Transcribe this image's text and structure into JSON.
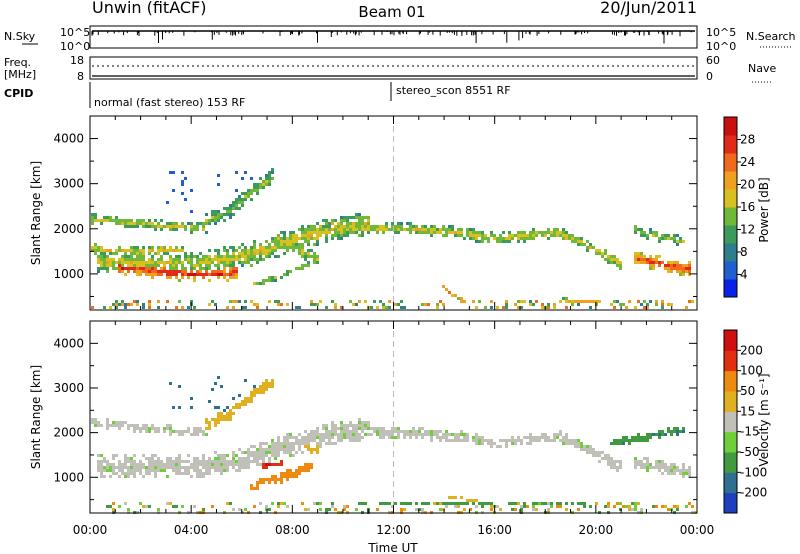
{
  "header": {
    "station": "Unwin (fitACF)",
    "beam": "Beam 01",
    "date": "20/Jun/2011"
  },
  "noise_panel": {
    "left_label": "N.Sky",
    "right_label": "N.Search",
    "y_ticks": [
      "10^5",
      "10^0"
    ]
  },
  "freq_panel": {
    "left_label_1": "Freq.",
    "left_label_2": "[MHz]",
    "left_ticks": [
      "18",
      "8"
    ],
    "right_label": "Nave",
    "right_ticks": [
      "60",
      "0"
    ]
  },
  "cpid_panel": {
    "label": "CPID",
    "segments": [
      {
        "text": "normal (fast stereo) 153 RF",
        "start_hour": 0
      },
      {
        "text": "stereo_scon 8551 RF",
        "start_hour": 12
      }
    ]
  },
  "chart_data": [
    {
      "type": "heatmap",
      "name": "power",
      "ylabel": "Slant Range [km]",
      "xlabel": "Time UT",
      "x_ticks": [
        "00:00",
        "04:00",
        "08:00",
        "12:00",
        "16:00",
        "20:00",
        "00:00"
      ],
      "xlim_hours": [
        0,
        24
      ],
      "ylim_km": [
        200,
        4500
      ],
      "y_ticks": [
        1000,
        2000,
        3000,
        4000
      ],
      "marker_line_hour": 12,
      "colorbar": {
        "label": "Power [dB]",
        "ticks": [
          "4",
          "8",
          "12",
          "16",
          "20",
          "24",
          "28"
        ],
        "colors": [
          "#0a22e6",
          "#1f5fd0",
          "#2f7e8c",
          "#3c9a5a",
          "#6fb83a",
          "#d8c020",
          "#f0a020",
          "#f06a1c",
          "#e02a1a",
          "#c81010"
        ]
      },
      "bands": [
        {
          "h": [
            1.0,
            2.0,
            3.0,
            4.0,
            5.0,
            5.8
          ],
          "km": [
            1180,
            1130,
            1080,
            1020,
            1020,
            1100
          ],
          "width_km": 350,
          "level": 0.9
        },
        {
          "h": [
            0.2,
            2.0,
            4.0,
            5.5,
            6.5,
            7.5,
            9.0,
            10.0,
            11.0
          ],
          "km": [
            1300,
            1280,
            1260,
            1380,
            1500,
            1700,
            1950,
            2050,
            2150
          ],
          "width_km": 520,
          "level": 0.55
        },
        {
          "h": [
            0.0,
            1.0,
            2.0,
            3.0,
            3.7
          ],
          "km": [
            1600,
            1550,
            1520,
            1560,
            1550
          ],
          "width_km": 220,
          "level": 0.6
        },
        {
          "h": [
            0.0,
            1.0,
            2.0,
            3.0,
            3.8,
            4.6
          ],
          "km": [
            2250,
            2200,
            2150,
            2100,
            2050,
            2050
          ],
          "width_km": 220,
          "level": 0.55
        },
        {
          "h": [
            4.5,
            5.5,
            6.2,
            7.2
          ],
          "km": [
            2200,
            2450,
            2800,
            3200
          ],
          "width_km": 350,
          "level": 0.45
        },
        {
          "h": [
            6.4,
            7.2,
            7.9,
            8.6
          ],
          "km": [
            800,
            930,
            1080,
            1250
          ],
          "width_km": 120,
          "level": 0.5
        },
        {
          "h": [
            7.5,
            8.2,
            9.0
          ],
          "km": [
            1750,
            1550,
            1350
          ],
          "width_km": 280,
          "level": 0.55
        },
        {
          "h": [
            9.5,
            10.5,
            11.5,
            12.5,
            13.5,
            14.5,
            15.5,
            16.5,
            17.5,
            18.5,
            19.5,
            20.3,
            21.0
          ],
          "km": [
            2150,
            2050,
            2030,
            2030,
            1980,
            1950,
            1850,
            1830,
            1900,
            1950,
            1700,
            1450,
            1250
          ],
          "width_km": 260,
          "level": 0.55
        },
        {
          "h": [
            21.4,
            22.2,
            23.0,
            23.7
          ],
          "km": [
            1400,
            1300,
            1200,
            1150
          ],
          "width_km": 320,
          "level": 0.85
        },
        {
          "h": [
            21.5,
            22.5,
            23.5
          ],
          "km": [
            2000,
            1850,
            1750
          ],
          "width_km": 220,
          "level": 0.5
        },
        {
          "h": [
            13.8,
            14.2,
            14.8
          ],
          "km": [
            800,
            600,
            450
          ],
          "width_km": 80,
          "level": 0.75
        },
        {
          "h": [
            18.5,
            19.4,
            20.1
          ],
          "km": [
            450,
            420,
            400
          ],
          "width_km": 100,
          "level": 0.7
        }
      ]
    },
    {
      "type": "heatmap",
      "name": "velocity",
      "ylabel": "Slant Range [km]",
      "xlabel": "Time UT",
      "x_ticks": [
        "00:00",
        "04:00",
        "08:00",
        "12:00",
        "16:00",
        "20:00",
        "00:00"
      ],
      "xlim_hours": [
        0,
        24
      ],
      "ylim_km": [
        200,
        4500
      ],
      "y_ticks": [
        1000,
        2000,
        3000,
        4000
      ],
      "marker_line_hour": 12,
      "colorbar": {
        "label": "Velocity [m s⁻¹]",
        "ticks": [
          "200",
          "100",
          "50",
          "15",
          "-15",
          "-50",
          "-100",
          "-200"
        ],
        "colors": [
          "#1f3fbf",
          "#2f7090",
          "#3f9a40",
          "#6fcf3a",
          "#c0c0b8",
          "#e0b020",
          "#ef8a10",
          "#e03010",
          "#d01010"
        ]
      },
      "bands": [
        {
          "h": [
            0.2,
            2.0,
            4.0,
            5.5,
            6.5,
            7.5,
            9.0,
            10.0,
            11.0
          ],
          "km": [
            1300,
            1280,
            1260,
            1380,
            1500,
            1700,
            1950,
            2050,
            2150
          ],
          "width_km": 520,
          "level": 0.47
        },
        {
          "h": [
            0.0,
            1.0,
            2.0,
            3.0,
            3.8,
            4.6
          ],
          "km": [
            2250,
            2200,
            2150,
            2100,
            2050,
            2050
          ],
          "width_km": 220,
          "level": 0.47
        },
        {
          "h": [
            9.5,
            10.5,
            11.5,
            12.5,
            13.5,
            14.5,
            15.5,
            16.5,
            17.5,
            18.5,
            19.5,
            20.3,
            21.0
          ],
          "km": [
            2150,
            2050,
            2030,
            2030,
            1980,
            1950,
            1850,
            1830,
            1900,
            1950,
            1700,
            1450,
            1250
          ],
          "width_km": 260,
          "level": 0.47
        },
        {
          "h": [
            21.4,
            22.2,
            23.0,
            23.7
          ],
          "km": [
            1400,
            1300,
            1200,
            1150
          ],
          "width_km": 320,
          "level": 0.47
        },
        {
          "h": [
            4.5,
            5.5,
            6.2,
            7.2
          ],
          "km": [
            2200,
            2450,
            2800,
            3200
          ],
          "width_km": 300,
          "level": 0.64
        },
        {
          "h": [
            6.3,
            7.2,
            8.0,
            8.7
          ],
          "km": [
            850,
            980,
            1120,
            1280
          ],
          "width_km": 260,
          "level": 0.75
        },
        {
          "h": [
            6.7,
            7.1,
            7.6
          ],
          "km": [
            1250,
            1320,
            1380
          ],
          "width_km": 130,
          "level": 0.92
        },
        {
          "h": [
            8.0,
            9.0
          ],
          "km": [
            1800,
            1650
          ],
          "width_km": 220,
          "level": 0.62
        },
        {
          "h": [
            10.5,
            12.0,
            14.0,
            16.0,
            18.0,
            20.0
          ],
          "km": [
            420,
            420,
            450,
            420,
            420,
            420
          ],
          "width_km": 70,
          "level": 0.25
        },
        {
          "h": [
            14.0,
            15.0,
            15.5
          ],
          "km": [
            600,
            520,
            460
          ],
          "width_km": 70,
          "level": 0.65
        },
        {
          "h": [
            20.5,
            21.5,
            22.5,
            23.5
          ],
          "km": [
            1800,
            1900,
            2000,
            2100
          ],
          "width_km": 200,
          "level": 0.22
        }
      ]
    }
  ]
}
